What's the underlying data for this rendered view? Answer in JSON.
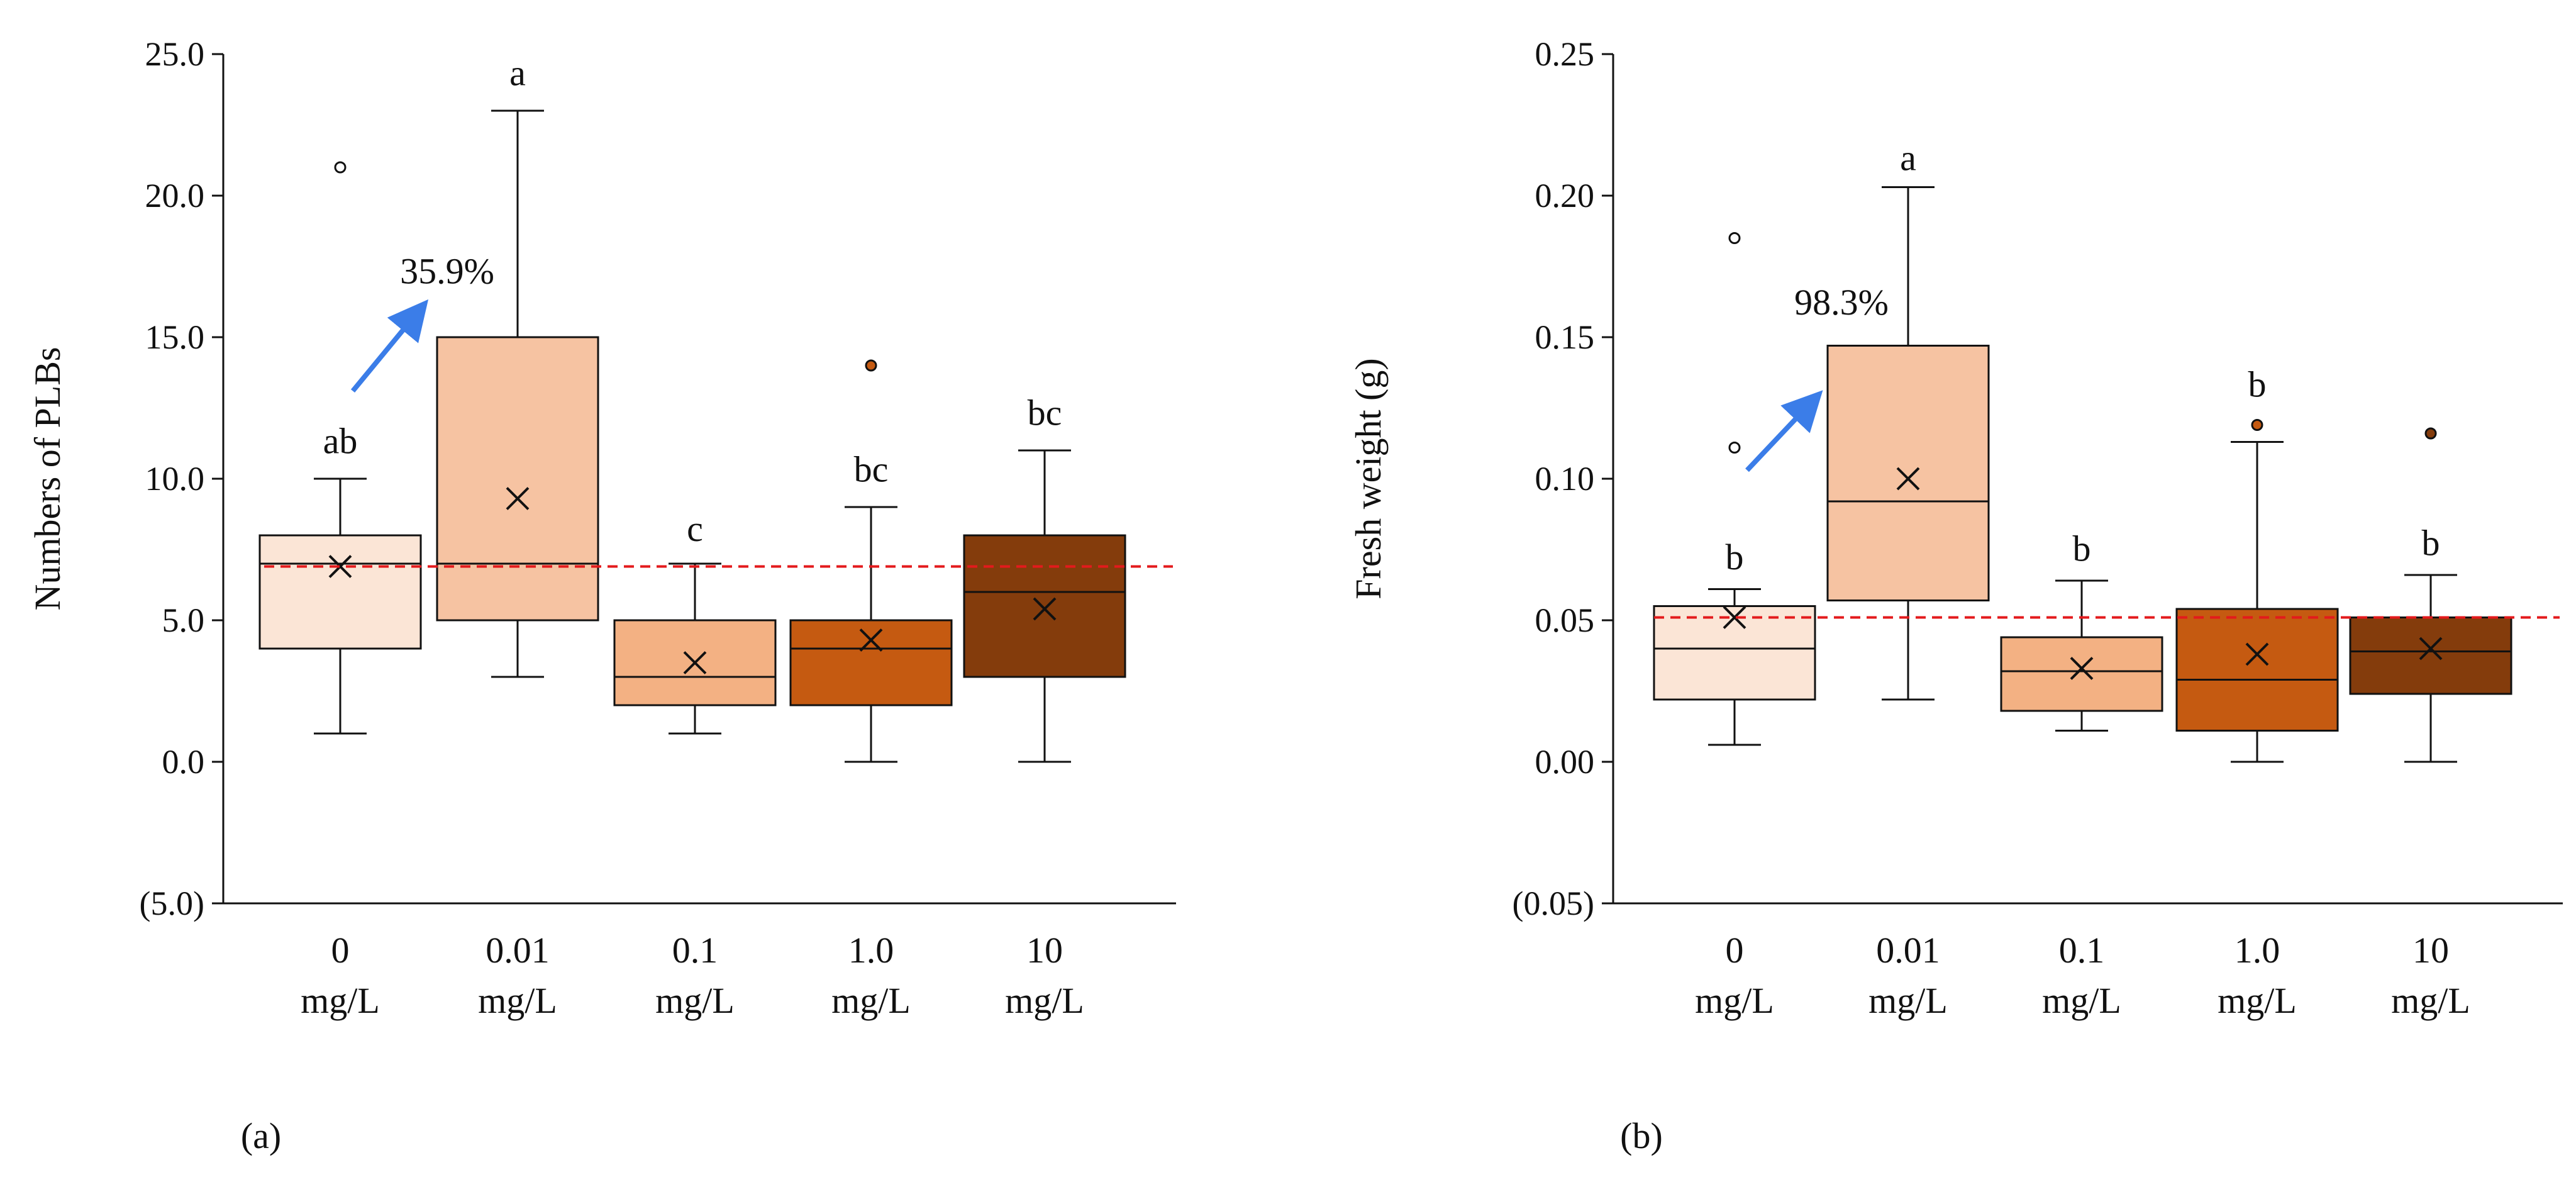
{
  "chart_data": [
    {
      "type": "box",
      "panel_label": "(a)",
      "ylabel": "Numbers of PLBs",
      "ylim": [
        -5,
        25
      ],
      "yticks": [
        -5,
        0,
        5,
        10,
        15,
        20,
        25
      ],
      "ytick_labels": [
        "(5.0)",
        "0.0",
        "5.0",
        "10.0",
        "15.0",
        "20.0",
        "25.0"
      ],
      "categories": [
        {
          "line1": "0",
          "line2": "mg/L"
        },
        {
          "line1": "0.01",
          "line2": "mg/L"
        },
        {
          "line1": "0.1",
          "line2": "mg/L"
        },
        {
          "line1": "1.0",
          "line2": "mg/L"
        },
        {
          "line1": "10",
          "line2": "mg/L"
        }
      ],
      "boxes": [
        {
          "min": 1,
          "q1": 4,
          "median": 7,
          "q3": 8,
          "max": 10,
          "mean": 6.9,
          "outliers": [
            21
          ],
          "letter": "ab",
          "letter_y": 11.3
        },
        {
          "min": 3,
          "q1": 5,
          "median": 7,
          "q3": 15,
          "max": 23,
          "mean": 9.3,
          "outliers": [],
          "letter": "a",
          "letter_y": 24.3
        },
        {
          "min": 1,
          "q1": 2,
          "median": 3,
          "q3": 5,
          "max": 7,
          "mean": 3.5,
          "outliers": [],
          "letter": "c",
          "letter_y": 8.2
        },
        {
          "min": 0,
          "q1": 2,
          "median": 4,
          "q3": 5,
          "max": 9,
          "mean": 4.3,
          "outliers": [
            14
          ],
          "letter": "bc",
          "letter_y": 10.3
        },
        {
          "min": 0,
          "q1": 3,
          "median": 6,
          "q3": 8,
          "max": 11,
          "mean": 5.4,
          "outliers": [],
          "letter": "bc",
          "letter_y": 12.3
        }
      ],
      "reference_line": 6.9,
      "annotation": {
        "text": "35.9%",
        "from_value": 13.1,
        "to_value": 16.2,
        "text_value": 17.3
      }
    },
    {
      "type": "box",
      "panel_label": "(b)",
      "ylabel": "Fresh weight (g)",
      "ylim": [
        -0.05,
        0.25
      ],
      "yticks": [
        -0.05,
        0,
        0.05,
        0.1,
        0.15,
        0.2,
        0.25
      ],
      "ytick_labels": [
        "(0.05)",
        "0.00",
        "0.05",
        "0.10",
        "0.15",
        "0.20",
        "0.25"
      ],
      "categories": [
        {
          "line1": "0",
          "line2": "mg/L"
        },
        {
          "line1": "0.01",
          "line2": "mg/L"
        },
        {
          "line1": "0.1",
          "line2": "mg/L"
        },
        {
          "line1": "1.0",
          "line2": "mg/L"
        },
        {
          "line1": "10",
          "line2": "mg/L"
        }
      ],
      "boxes": [
        {
          "min": 0.006,
          "q1": 0.022,
          "median": 0.04,
          "q3": 0.055,
          "max": 0.061,
          "mean": 0.051,
          "outliers": [
            0.111,
            0.185
          ],
          "letter": "b",
          "letter_y": 0.072
        },
        {
          "min": 0.022,
          "q1": 0.057,
          "median": 0.092,
          "q3": 0.147,
          "max": 0.203,
          "mean": 0.1,
          "outliers": [],
          "letter": "a",
          "letter_y": 0.213
        },
        {
          "min": 0.011,
          "q1": 0.018,
          "median": 0.032,
          "q3": 0.044,
          "max": 0.064,
          "mean": 0.033,
          "outliers": [],
          "letter": "b",
          "letter_y": 0.075
        },
        {
          "min": 0.0,
          "q1": 0.011,
          "median": 0.029,
          "q3": 0.054,
          "max": 0.113,
          "mean": 0.038,
          "outliers": [
            0.119
          ],
          "letter": "b",
          "letter_y": 0.133
        },
        {
          "min": 0.0,
          "q1": 0.024,
          "median": 0.039,
          "q3": 0.051,
          "max": 0.066,
          "mean": 0.04,
          "outliers": [
            0.116
          ],
          "letter": "b",
          "letter_y": 0.077
        }
      ],
      "reference_line": 0.051,
      "annotation": {
        "text": "98.3%",
        "from_value": 0.103,
        "to_value": 0.13,
        "text_value": 0.162
      }
    }
  ],
  "colors": {
    "boxes": [
      "#fbe5d6",
      "#f6c3a2",
      "#f3b183",
      "#c55a11",
      "#843c0c"
    ],
    "outline": "#111111",
    "reference_line": "#e31a1c",
    "arrow": "#3b7de8"
  }
}
